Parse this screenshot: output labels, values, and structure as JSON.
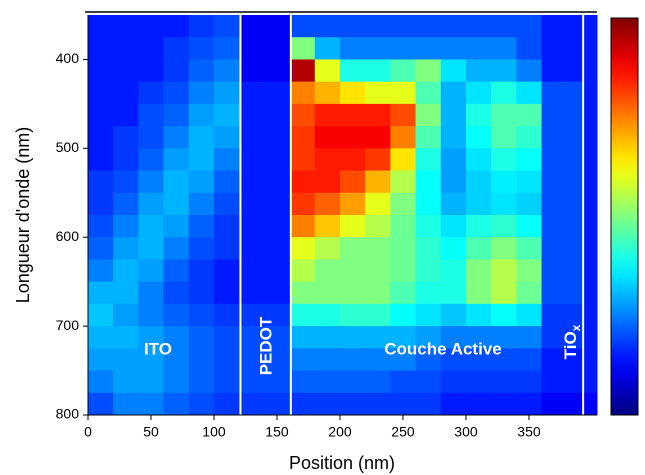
{
  "chart_data": {
    "type": "heatmap",
    "xlabel": "Position (nm)",
    "ylabel": "Longueur d'onde (nm)",
    "xlim": [
      0,
      404
    ],
    "ylim": [
      800,
      350
    ],
    "xticks": [
      0,
      50,
      100,
      150,
      200,
      250,
      300,
      350
    ],
    "yticks": [
      400,
      500,
      600,
      700,
      800
    ],
    "colormap": "jet",
    "zlim": [
      0,
      1
    ],
    "layer_boundaries": [
      121,
      161,
      393
    ],
    "annotations": [
      "ITO",
      "PEDOT",
      "Couche Active",
      {
        "text": "TiO",
        "subscript": "x"
      }
    ],
    "x_edges": [
      0,
      20,
      40,
      60,
      80,
      100,
      121,
      141,
      161,
      180,
      200,
      220,
      240,
      260,
      280,
      300,
      320,
      340,
      360,
      380,
      393,
      404
    ],
    "y_edges": [
      350,
      375,
      400,
      425,
      450,
      475,
      500,
      525,
      550,
      575,
      600,
      625,
      650,
      675,
      700,
      725,
      750,
      775,
      800
    ],
    "z": [
      [
        0.15,
        0.15,
        0.15,
        0.15,
        0.18,
        0.2,
        0.12,
        0.12,
        0.2,
        0.2,
        0.2,
        0.2,
        0.2,
        0.2,
        0.2,
        0.2,
        0.2,
        0.2,
        0.15,
        0.15,
        0.15
      ],
      [
        0.15,
        0.15,
        0.15,
        0.18,
        0.2,
        0.22,
        0.12,
        0.12,
        0.5,
        0.3,
        0.25,
        0.25,
        0.25,
        0.25,
        0.25,
        0.25,
        0.25,
        0.2,
        0.15,
        0.15,
        0.15
      ],
      [
        0.15,
        0.15,
        0.15,
        0.18,
        0.22,
        0.25,
        0.12,
        0.12,
        0.95,
        0.6,
        0.4,
        0.4,
        0.45,
        0.5,
        0.35,
        0.3,
        0.3,
        0.25,
        0.15,
        0.15,
        0.15
      ],
      [
        0.15,
        0.15,
        0.18,
        0.2,
        0.25,
        0.28,
        0.15,
        0.15,
        0.75,
        0.7,
        0.65,
        0.6,
        0.6,
        0.45,
        0.3,
        0.35,
        0.4,
        0.35,
        0.2,
        0.2,
        0.15
      ],
      [
        0.15,
        0.15,
        0.2,
        0.22,
        0.28,
        0.3,
        0.15,
        0.15,
        0.8,
        0.85,
        0.85,
        0.85,
        0.8,
        0.5,
        0.3,
        0.4,
        0.45,
        0.45,
        0.2,
        0.2,
        0.15
      ],
      [
        0.15,
        0.18,
        0.2,
        0.25,
        0.3,
        0.28,
        0.15,
        0.15,
        0.82,
        0.88,
        0.88,
        0.88,
        0.75,
        0.45,
        0.3,
        0.38,
        0.45,
        0.42,
        0.2,
        0.2,
        0.15
      ],
      [
        0.15,
        0.18,
        0.22,
        0.28,
        0.3,
        0.25,
        0.15,
        0.15,
        0.82,
        0.85,
        0.85,
        0.82,
        0.65,
        0.4,
        0.28,
        0.35,
        0.4,
        0.38,
        0.2,
        0.2,
        0.15
      ],
      [
        0.18,
        0.2,
        0.25,
        0.3,
        0.28,
        0.22,
        0.15,
        0.15,
        0.85,
        0.85,
        0.8,
        0.7,
        0.55,
        0.38,
        0.28,
        0.33,
        0.36,
        0.35,
        0.2,
        0.2,
        0.15
      ],
      [
        0.18,
        0.22,
        0.28,
        0.3,
        0.25,
        0.2,
        0.15,
        0.15,
        0.82,
        0.78,
        0.72,
        0.6,
        0.5,
        0.38,
        0.3,
        0.33,
        0.35,
        0.33,
        0.2,
        0.2,
        0.15
      ],
      [
        0.2,
        0.25,
        0.3,
        0.28,
        0.22,
        0.18,
        0.15,
        0.15,
        0.75,
        0.68,
        0.6,
        0.55,
        0.48,
        0.4,
        0.35,
        0.4,
        0.42,
        0.38,
        0.2,
        0.2,
        0.15
      ],
      [
        0.22,
        0.28,
        0.3,
        0.25,
        0.2,
        0.18,
        0.15,
        0.15,
        0.6,
        0.55,
        0.5,
        0.5,
        0.48,
        0.42,
        0.38,
        0.45,
        0.5,
        0.45,
        0.2,
        0.2,
        0.15
      ],
      [
        0.25,
        0.3,
        0.28,
        0.22,
        0.18,
        0.15,
        0.15,
        0.15,
        0.55,
        0.5,
        0.5,
        0.5,
        0.48,
        0.42,
        0.4,
        0.5,
        0.55,
        0.5,
        0.2,
        0.2,
        0.15
      ],
      [
        0.3,
        0.3,
        0.25,
        0.2,
        0.18,
        0.15,
        0.15,
        0.15,
        0.5,
        0.5,
        0.5,
        0.5,
        0.45,
        0.4,
        0.4,
        0.5,
        0.55,
        0.48,
        0.2,
        0.2,
        0.15
      ],
      [
        0.32,
        0.28,
        0.25,
        0.22,
        0.2,
        0.18,
        0.18,
        0.18,
        0.4,
        0.4,
        0.42,
        0.42,
        0.38,
        0.35,
        0.32,
        0.35,
        0.38,
        0.35,
        0.18,
        0.18,
        0.15
      ],
      [
        0.3,
        0.3,
        0.28,
        0.25,
        0.22,
        0.2,
        0.2,
        0.2,
        0.3,
        0.3,
        0.3,
        0.3,
        0.3,
        0.28,
        0.25,
        0.25,
        0.25,
        0.25,
        0.18,
        0.18,
        0.15
      ],
      [
        0.28,
        0.28,
        0.28,
        0.25,
        0.22,
        0.2,
        0.2,
        0.2,
        0.25,
        0.25,
        0.25,
        0.25,
        0.25,
        0.22,
        0.2,
        0.2,
        0.2,
        0.2,
        0.15,
        0.15,
        0.15
      ],
      [
        0.25,
        0.28,
        0.28,
        0.25,
        0.22,
        0.2,
        0.2,
        0.2,
        0.22,
        0.22,
        0.22,
        0.22,
        0.2,
        0.2,
        0.18,
        0.18,
        0.18,
        0.18,
        0.15,
        0.15,
        0.15
      ],
      [
        0.2,
        0.25,
        0.25,
        0.22,
        0.2,
        0.18,
        0.18,
        0.18,
        0.18,
        0.18,
        0.18,
        0.18,
        0.18,
        0.18,
        0.15,
        0.15,
        0.15,
        0.15,
        0.12,
        0.12,
        0.12
      ]
    ]
  }
}
